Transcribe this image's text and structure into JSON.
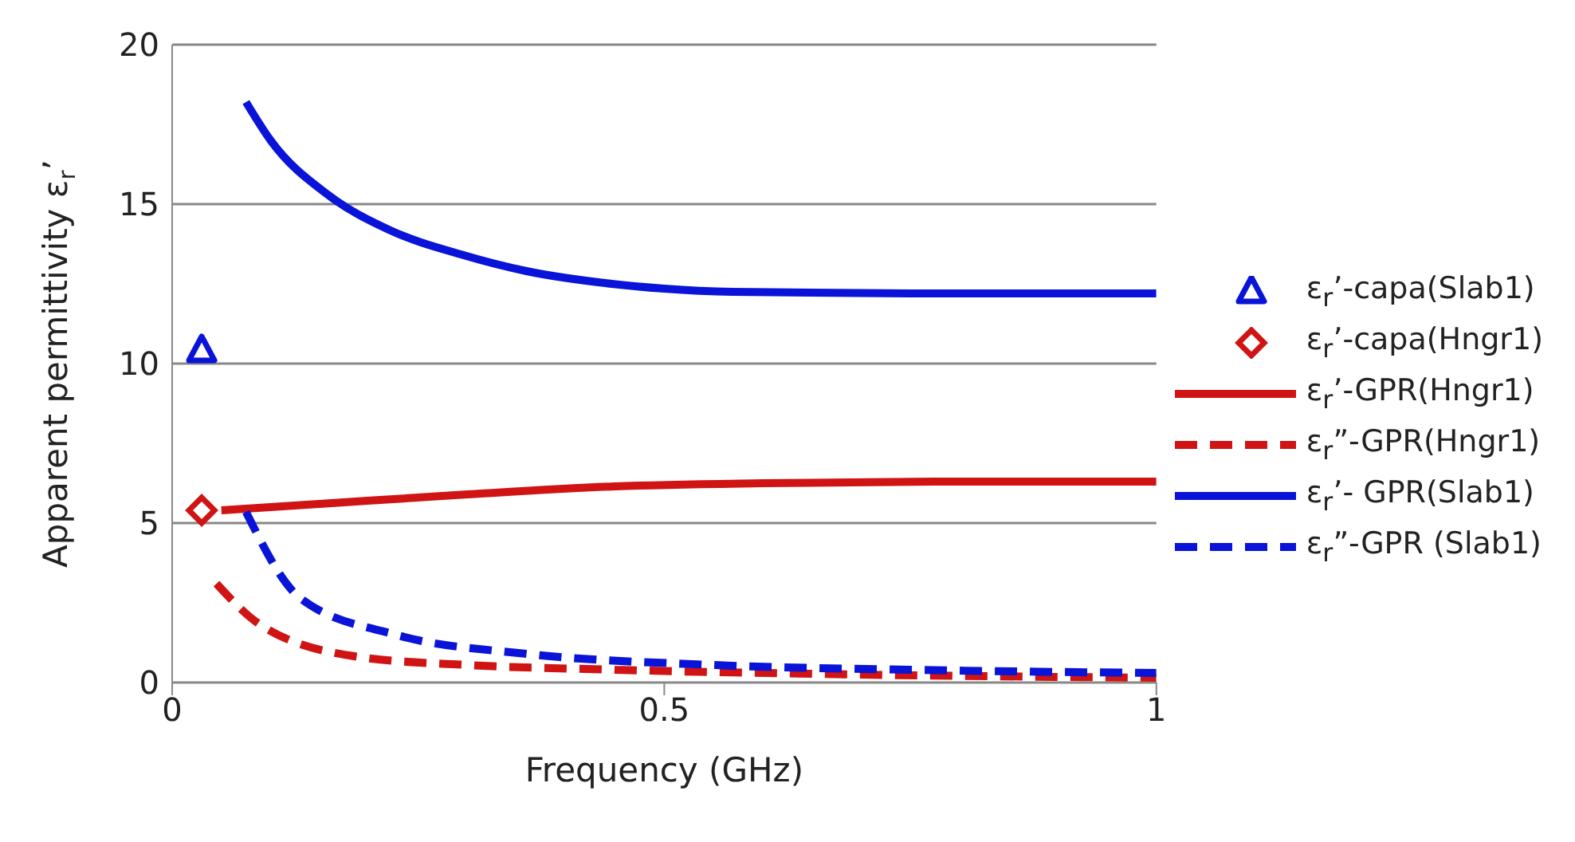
{
  "chart_data": {
    "type": "line",
    "xlabel": "Frequency (GHz)",
    "ylabel": "Apparent permittivity ε$_{r}$’",
    "xlim": [
      0,
      1
    ],
    "xticks": [
      0,
      0.5,
      1
    ],
    "ylim": [
      0,
      20
    ],
    "yticks": [
      0,
      5,
      10,
      15,
      20
    ],
    "grid": "y",
    "legend": "right",
    "series": [
      {
        "name": "ε$_{r}$’-capa(Slab1)",
        "type": "scatter",
        "marker": "triangle",
        "color": "#0a14d8",
        "x": [
          0.03
        ],
        "values": [
          10.4
        ]
      },
      {
        "name": "ε$_{r}$’-capa(Hngr1)",
        "type": "scatter",
        "marker": "diamond",
        "color": "#d01414",
        "x": [
          0.03
        ],
        "values": [
          5.4
        ]
      },
      {
        "name": "ε$_{r}$’-GPR(Hngr1)",
        "line_style": "solid",
        "marker": "none",
        "color": "#d01414",
        "x": [
          0.05,
          0.15,
          0.3,
          0.45,
          0.6,
          0.8,
          1
        ],
        "values": [
          5.4,
          5.6,
          5.9,
          6.15,
          6.25,
          6.3,
          6.3
        ]
      },
      {
        "name": "ε$_{r}$”-GPR(Hngr1)",
        "line_style": "dashed",
        "marker": "none",
        "color": "#d01414",
        "x": [
          0.045,
          0.09,
          0.19,
          0.3,
          0.45,
          0.7,
          1
        ],
        "values": [
          3.1,
          1.8,
          0.8,
          0.55,
          0.4,
          0.25,
          0.15
        ]
      },
      {
        "name": "ε$_{r}$’- GPR(Slab1)",
        "line_style": "solid",
        "marker": "none",
        "color": "#0a14d8",
        "x": [
          0.075,
          0.1,
          0.158,
          0.22,
          0.296,
          0.36,
          0.433,
          0.5,
          0.569,
          0.75,
          1
        ],
        "values": [
          18.2,
          17,
          15.3,
          14.2,
          13.4,
          12.9,
          12.55,
          12.35,
          12.25,
          12.2,
          12.2
        ]
      },
      {
        "name": "ε$_{r}$”-GPR (Slab1)",
        "line_style": "dashed",
        "marker": "none",
        "color": "#0a14d8",
        "x": [
          0.075,
          0.13,
          0.227,
          0.36,
          0.55,
          0.75,
          1
        ],
        "values": [
          5.35,
          2.65,
          1.5,
          0.9,
          0.55,
          0.4,
          0.3
        ]
      }
    ]
  }
}
